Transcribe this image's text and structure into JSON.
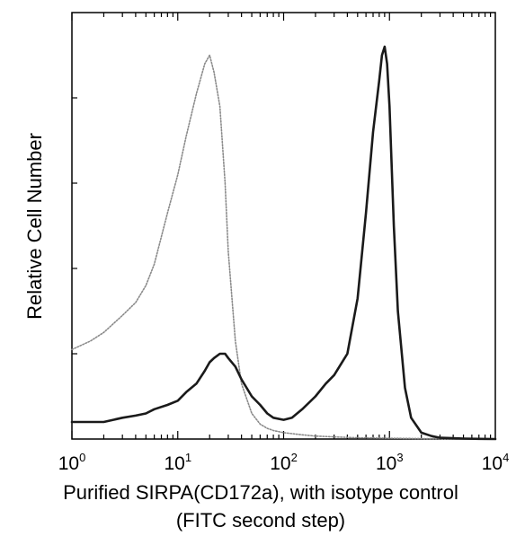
{
  "chart_data": {
    "type": "line",
    "title": "",
    "xlabel": "Purified SIRPA(CD172a), with isotype control",
    "xlabel_line2": "(FITC second step)",
    "ylabel": "Relative Cell Number",
    "xscale": "log",
    "xlim": [
      1,
      10000
    ],
    "ylim": [
      0,
      100
    ],
    "grid": false,
    "legend": "none",
    "x_ticks": [
      {
        "base": "10",
        "exp": "0",
        "value": 1
      },
      {
        "base": "10",
        "exp": "1",
        "value": 10
      },
      {
        "base": "10",
        "exp": "2",
        "value": 100
      },
      {
        "base": "10",
        "exp": "3",
        "value": 1000
      },
      {
        "base": "10",
        "exp": "4",
        "value": 10000
      }
    ],
    "series": [
      {
        "style": "dotted-gray",
        "color": "#8a8a8a",
        "x": [
          1,
          1.5,
          2,
          3,
          4,
          5,
          6,
          8,
          10,
          12,
          15,
          18,
          20,
          22,
          25,
          28,
          30,
          35,
          40,
          50,
          60,
          70,
          80,
          100,
          150,
          200,
          300,
          500,
          1000,
          2000,
          5000,
          10000
        ],
        "y": [
          21,
          23,
          25,
          29,
          32,
          36,
          41,
          53,
          62,
          71,
          81,
          88,
          90,
          86,
          78,
          60,
          44,
          23,
          13,
          6,
          3.5,
          2.5,
          2,
          1.5,
          1,
          0.7,
          0.5,
          0.3,
          0.2,
          0.1,
          0.05,
          0
        ]
      },
      {
        "style": "solid-dark",
        "color": "#1a1a1a",
        "x": [
          1,
          1.5,
          2,
          3,
          4,
          5,
          6,
          8,
          10,
          12,
          15,
          18,
          20,
          22,
          25,
          28,
          30,
          35,
          40,
          50,
          60,
          70,
          80,
          100,
          120,
          150,
          200,
          250,
          300,
          400,
          500,
          600,
          700,
          800,
          850,
          900,
          950,
          1000,
          1100,
          1200,
          1400,
          1600,
          2000,
          2500,
          3000,
          4000,
          5000,
          7000,
          10000
        ],
        "y": [
          4,
          4,
          4,
          5,
          5.5,
          6,
          7,
          8,
          9,
          11,
          13,
          16,
          18,
          19,
          20,
          20,
          19,
          17,
          14,
          10,
          8,
          6,
          5,
          4.5,
          5,
          7,
          10,
          13,
          15,
          20,
          33,
          53,
          72,
          84,
          90,
          92,
          88,
          78,
          50,
          30,
          12,
          5,
          1.5,
          0.7,
          0.3,
          0.2,
          0.1,
          0.05,
          0
        ]
      }
    ]
  }
}
